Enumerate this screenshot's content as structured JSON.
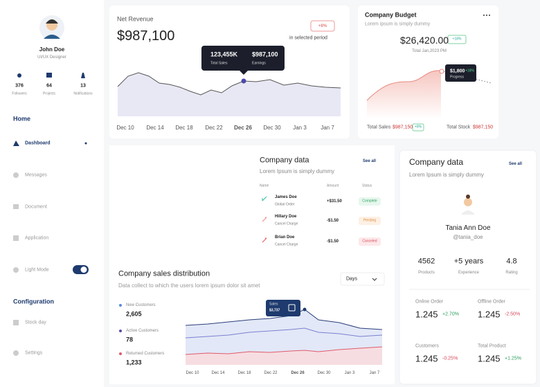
{
  "sidebar": {
    "user": {
      "name": "John Doe",
      "role": "UI/UX Designer"
    },
    "stats": [
      {
        "value": "376",
        "label": "Followers"
      },
      {
        "value": "64",
        "label": "Projects"
      },
      {
        "value": "13",
        "label": "Notifications"
      }
    ],
    "home_heading": "Home",
    "nav": [
      "Dashboard",
      "Messages",
      "Document",
      "Application",
      "Light Mode"
    ],
    "config_heading": "Configuration",
    "config_nav": [
      "Stock day",
      "Settings"
    ]
  },
  "net_revenue": {
    "title": "Net Revenue",
    "amount": "$987,100",
    "badge": "+8%",
    "period": "in selected period",
    "tooltip": {
      "sales": "123,455K",
      "sales_label": "Total Sales",
      "earnings": "$987,100",
      "earnings_label": "Earnings"
    },
    "dates": [
      "Dec 10",
      "Dec 14",
      "Dec 18",
      "Dec 22",
      "Dec 26",
      "Dec 30",
      "Jan 3",
      "Jan 7"
    ]
  },
  "budget": {
    "title": "Company Budget",
    "subtitle": "Lorem ipsum is simply dummy",
    "amount": "$26,420.00",
    "badge": "+18%",
    "note": "Total Jan,2023 PM",
    "tooltip": {
      "value": "$1,800",
      "badge": "+18%",
      "label": "Progress"
    },
    "total_sales_label": "Total Sales",
    "total_sales": "$987,150",
    "total_badge": "+8%",
    "total_stock_label": "Total Stock",
    "total_stock": "$987,150"
  },
  "company_table": {
    "title": "Company data",
    "subtitle": "Lorem Ipsum is simply dummy",
    "see_all": "See all",
    "headers": [
      "Name",
      "Amount",
      "Status"
    ],
    "rows": [
      {
        "name": "James Doe",
        "sub": "Global Order",
        "amount": "+$31.50",
        "status": "Complete"
      },
      {
        "name": "Hillary Doe",
        "sub": "Cancel Charge",
        "amount": "-$1.50",
        "status": "Pending"
      },
      {
        "name": "Brian Doe",
        "sub": "Cancel Charge",
        "amount": "-$1.50",
        "status": "Canceled"
      }
    ]
  },
  "profile_card": {
    "title": "Company data",
    "subtitle": "Lorem Ipsum is simply dummy",
    "see_all": "See all",
    "name": "Tania Ann Doe",
    "handle": "@tania_doe",
    "stats": [
      {
        "value": "4562",
        "label": "Products"
      },
      {
        "value": "+5 years",
        "label": "Experience"
      },
      {
        "value": "4.8",
        "label": "Rating"
      }
    ],
    "metrics": [
      {
        "label": "Online Order",
        "value": "1.245",
        "change": "+2.70%"
      },
      {
        "label": "Offline Order",
        "value": "1.245",
        "change": "-2.50%"
      },
      {
        "label": "Customers",
        "value": "1.245",
        "change": "-0.25%"
      },
      {
        "label": "Total Product",
        "value": "1.245",
        "change": "+1.25%"
      }
    ]
  },
  "sales_distribution": {
    "title": "Company sales distribution",
    "subtitle": "Data collect to which the users lorem ipsum dolor sit amet",
    "dropdown": "Days",
    "legend": [
      {
        "label": "New Customers",
        "value": "2,605"
      },
      {
        "label": "Active Customers",
        "value": "78"
      },
      {
        "label": "Returned Customers",
        "value": "1,233"
      }
    ],
    "tooltip": {
      "label": "Sales",
      "value": "$3,737"
    },
    "dates": [
      "Dec 10",
      "Dec 14",
      "Dec 18",
      "Dec 22",
      "Dec 26",
      "Dec 30",
      "Jan 3",
      "Jan 7"
    ]
  }
}
